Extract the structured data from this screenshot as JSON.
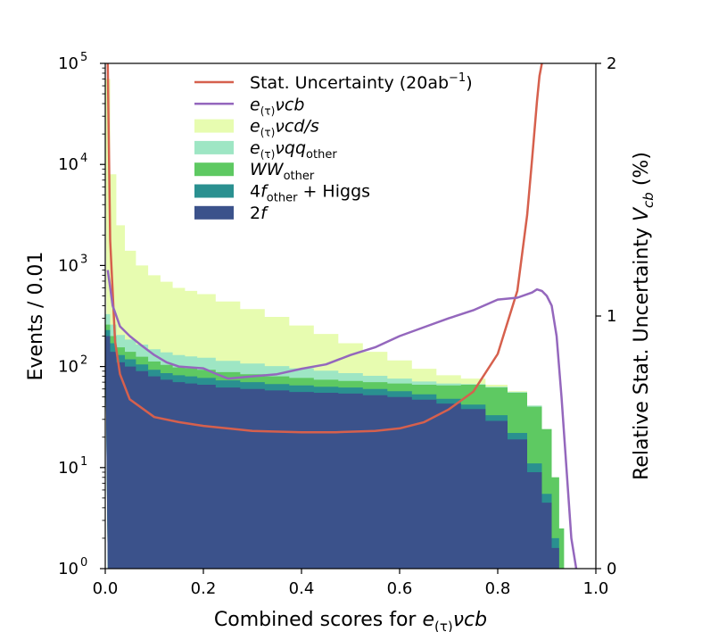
{
  "chart_data": {
    "type": "area",
    "title": "",
    "xlabel_prefix": "Combined scores for ",
    "xlabel_math": "e(τ)νcb",
    "ylabel_left": "Events / 0.01",
    "ylabel_right_prefix": "Relative Stat. Uncertainty ",
    "ylabel_right_math": "Vcb",
    "ylabel_right_suffix": " (%)",
    "xlim": [
      0.0,
      1.0
    ],
    "ylim_left": [
      1,
      100000
    ],
    "ylim_right": [
      0,
      2
    ],
    "yscale_left": "log",
    "x_ticks": [
      "0.0",
      "0.2",
      "0.4",
      "0.6",
      "0.8",
      "1.0"
    ],
    "y_ticks_left": [
      {
        "base": "10",
        "exp": "0"
      },
      {
        "base": "10",
        "exp": "1"
      },
      {
        "base": "10",
        "exp": "2"
      },
      {
        "base": "10",
        "exp": "3"
      },
      {
        "base": "10",
        "exp": "4"
      },
      {
        "base": "10",
        "exp": "5"
      }
    ],
    "y_ticks_right": [
      "0",
      "1",
      "2"
    ],
    "legend_position": "top-center",
    "x": [
      0.005,
      0.015,
      0.03,
      0.05,
      0.075,
      0.1,
      0.125,
      0.15,
      0.175,
      0.2,
      0.25,
      0.3,
      0.35,
      0.4,
      0.45,
      0.5,
      0.55,
      0.6,
      0.65,
      0.7,
      0.75,
      0.8,
      0.84,
      0.88,
      0.9,
      0.92,
      0.93,
      0.94
    ],
    "stack": [
      {
        "name": "2f",
        "label_math": "2f",
        "color": "#3b528b",
        "values": [
          200,
          140,
          110,
          100,
          90,
          80,
          74,
          70,
          68,
          66,
          62,
          60,
          58,
          56,
          55,
          54,
          52,
          50,
          47,
          43,
          38,
          29,
          19,
          9,
          4.5,
          1.6,
          1,
          1
        ]
      },
      {
        "name": "4f_other + Higgs",
        "label_math": "4fother + Higgs",
        "color": "#2a9090",
        "values": [
          230,
          170,
          130,
          118,
          105,
          93,
          86,
          82,
          80,
          77,
          73,
          70,
          67,
          65,
          63,
          62,
          60,
          57,
          53,
          48,
          42,
          33,
          22,
          11,
          5.5,
          2,
          1,
          1
        ]
      },
      {
        "name": "WW_other",
        "label_math": "WWother",
        "color": "#5ec962",
        "values": [
          260,
          200,
          155,
          140,
          125,
          112,
          104,
          98,
          96,
          93,
          88,
          84,
          80,
          77,
          74,
          72,
          70,
          68,
          66,
          65,
          66,
          62,
          55,
          40,
          24,
          8,
          2.5,
          1
        ]
      },
      {
        "name": "e(τ)νqq_other",
        "label_math": "e(τ)νqqother",
        "color": "#9ee6c4",
        "values": [
          330,
          260,
          205,
          185,
          165,
          148,
          138,
          130,
          126,
          122,
          114,
          107,
          101,
          96,
          91,
          86,
          81,
          76,
          71,
          68,
          67,
          63,
          56,
          41,
          24,
          8,
          2.5,
          1
        ]
      },
      {
        "name": "e(τ)νcd/s",
        "label_math": "e(τ)νcd/s",
        "color": "#e7fcb0",
        "values": [
          70000,
          8000,
          2500,
          1400,
          1000,
          800,
          690,
          600,
          560,
          520,
          440,
          370,
          310,
          255,
          210,
          170,
          140,
          115,
          95,
          82,
          76,
          66,
          57,
          41,
          24,
          8,
          2.5,
          1
        ]
      }
    ],
    "lines": [
      {
        "name": "Stat. Uncertainty (20ab⁻¹)",
        "axis": "right",
        "color": "#d6604d",
        "x": [
          0.005,
          0.01,
          0.02,
          0.03,
          0.05,
          0.1,
          0.15,
          0.2,
          0.3,
          0.4,
          0.47,
          0.55,
          0.6,
          0.65,
          0.7,
          0.75,
          0.8,
          0.84,
          0.86,
          0.87,
          0.88,
          0.885,
          0.89
        ],
        "values": [
          2.0,
          1.3,
          0.9,
          0.77,
          0.67,
          0.6,
          0.58,
          0.565,
          0.545,
          0.54,
          0.54,
          0.545,
          0.555,
          0.58,
          0.63,
          0.7,
          0.85,
          1.1,
          1.4,
          1.62,
          1.85,
          1.95,
          2.0
        ]
      },
      {
        "name": "e(τ)νcb",
        "axis": "left",
        "color": "#9467bd",
        "x": [
          0.005,
          0.015,
          0.03,
          0.05,
          0.075,
          0.1,
          0.125,
          0.15,
          0.175,
          0.2,
          0.225,
          0.25,
          0.3,
          0.35,
          0.4,
          0.45,
          0.5,
          0.55,
          0.6,
          0.65,
          0.7,
          0.75,
          0.8,
          0.84,
          0.87,
          0.88,
          0.89,
          0.9,
          0.91,
          0.92,
          0.93,
          0.94,
          0.95,
          0.96
        ],
        "values": [
          900,
          400,
          250,
          200,
          160,
          130,
          110,
          100,
          98,
          96,
          85,
          76,
          80,
          84,
          95,
          105,
          130,
          155,
          200,
          245,
          300,
          360,
          460,
          480,
          540,
          580,
          560,
          500,
          400,
          200,
          50,
          10,
          2,
          1
        ]
      }
    ],
    "legend": [
      {
        "label": "Stat. Uncertainty (20ab",
        "sup": "−1",
        "tail": ")",
        "kind": "line",
        "color": "#d6604d"
      },
      {
        "label": "e(τ)νcb",
        "kind": "line",
        "color": "#9467bd"
      },
      {
        "label": "e(τ)νcd/s",
        "kind": "patch",
        "color": "#e7fcb0"
      },
      {
        "label": "e(τ)νqqother",
        "kind": "patch",
        "color": "#9ee6c4"
      },
      {
        "label": "WWother",
        "kind": "patch",
        "color": "#5ec962"
      },
      {
        "label": "4fother + Higgs",
        "kind": "patch",
        "color": "#2a9090"
      },
      {
        "label": "2f",
        "kind": "patch",
        "color": "#3b528b"
      }
    ]
  }
}
